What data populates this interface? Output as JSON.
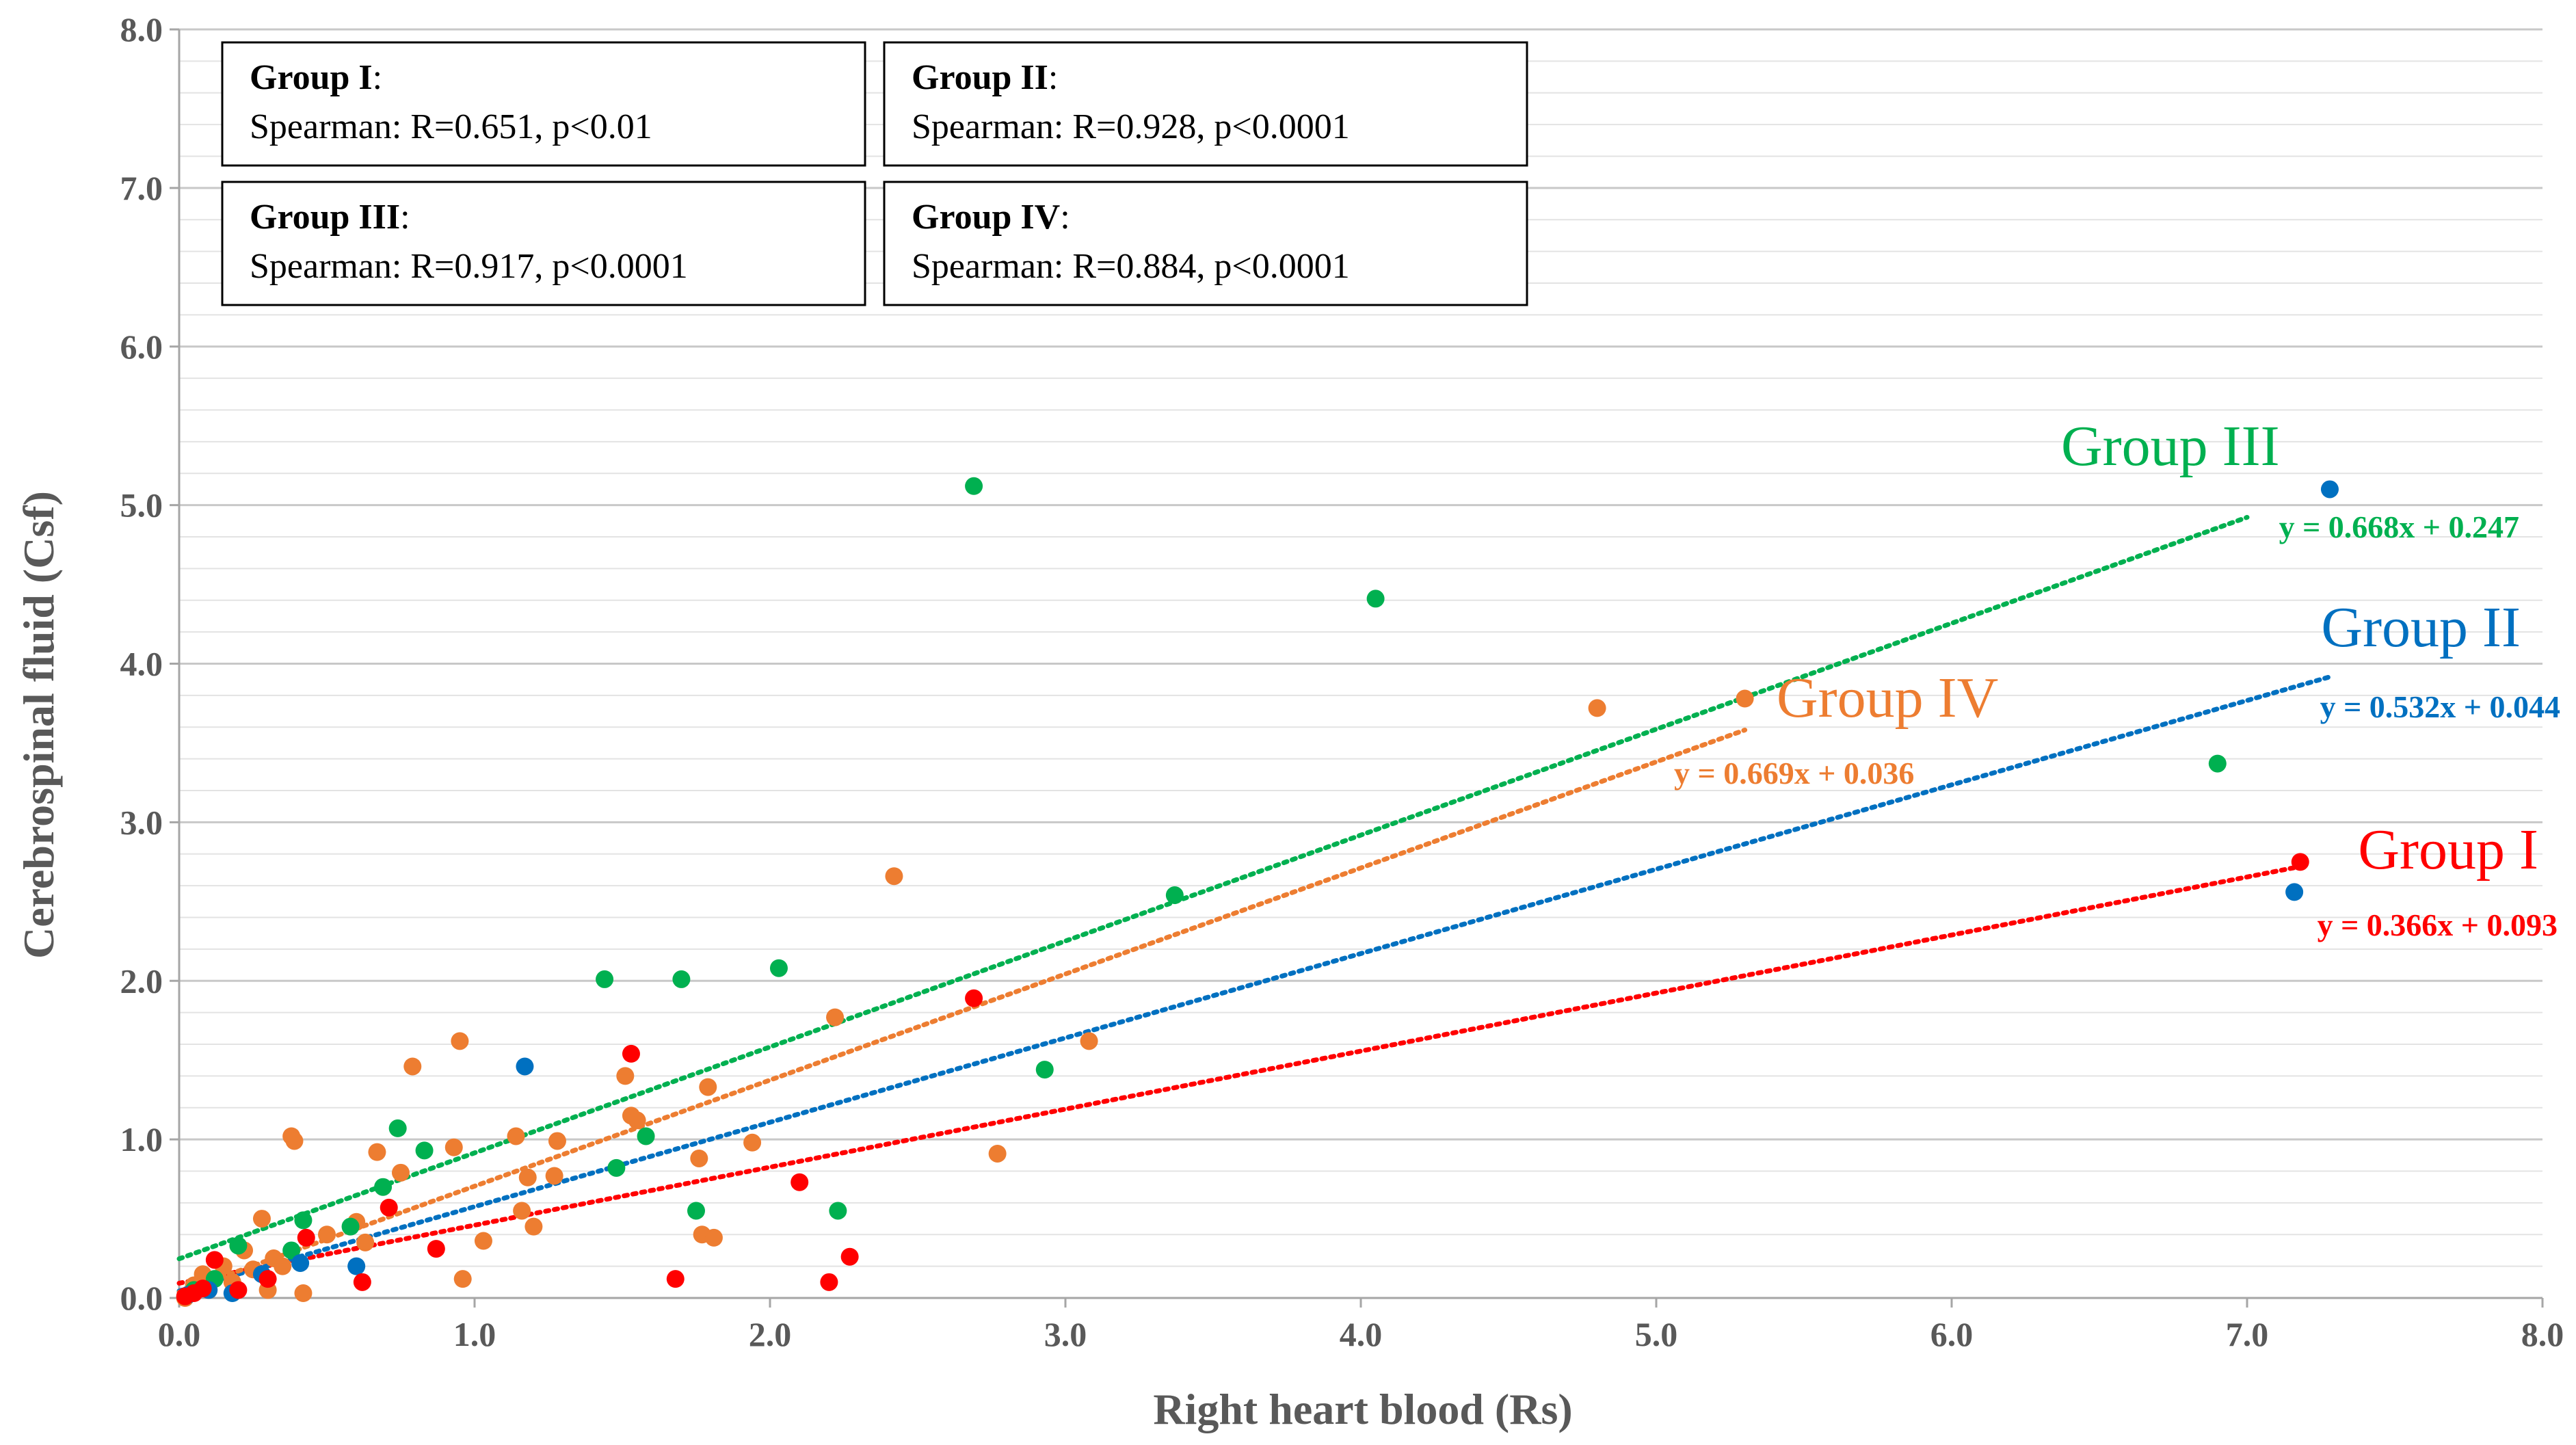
{
  "chart_data": {
    "type": "scatter",
    "xlabel": "Right heart blood (Rs)",
    "ylabel": "Cerebrospinal fluid (Csf)",
    "xlim": [
      0,
      8
    ],
    "ylim": [
      0,
      8
    ],
    "x_ticks": [
      "0.0",
      "1.0",
      "2.0",
      "3.0",
      "4.0",
      "5.0",
      "6.0",
      "7.0",
      "8.0"
    ],
    "y_ticks": [
      "0.0",
      "1.0",
      "2.0",
      "3.0",
      "4.0",
      "5.0",
      "6.0",
      "7.0",
      "8.0"
    ],
    "grid": "horizontal minor gridlines",
    "stats_boxes": [
      {
        "group": "Group I",
        "colon": ":",
        "stat": "Spearman: R=0.651,  p<0.01"
      },
      {
        "group": "Group II",
        "colon": ":",
        "stat": "Spearman: R=0.928,  p<0.0001"
      },
      {
        "group": "Group III",
        "colon": ":",
        "stat": "Spearman: R=0.917,  p<0.0001"
      },
      {
        "group": "Group IV",
        "colon": ":",
        "stat": "Spearman: R=0.884,  p<0.0001"
      }
    ],
    "series": [
      {
        "name": "Group I",
        "color": "#ff0000",
        "equation": "y = 0.366x + 0.093",
        "slope": 0.366,
        "intercept": 0.093,
        "trend_x": [
          0,
          7.18
        ],
        "points": [
          [
            0.02,
            0.01
          ],
          [
            0.05,
            0.03
          ],
          [
            0.08,
            0.06
          ],
          [
            0.12,
            0.24
          ],
          [
            0.2,
            0.05
          ],
          [
            0.3,
            0.12
          ],
          [
            0.43,
            0.38
          ],
          [
            0.62,
            0.1
          ],
          [
            0.71,
            0.57
          ],
          [
            0.87,
            0.31
          ],
          [
            1.53,
            1.54
          ],
          [
            1.68,
            0.12
          ],
          [
            2.1,
            0.73
          ],
          [
            2.2,
            0.1
          ],
          [
            2.27,
            0.26
          ],
          [
            2.69,
            1.89
          ],
          [
            7.18,
            2.75
          ]
        ]
      },
      {
        "name": "Group II",
        "color": "#0070c0",
        "equation": "y = 0.532x + 0.044",
        "slope": 0.532,
        "intercept": 0.044,
        "trend_x": [
          0,
          7.28
        ],
        "points": [
          [
            0.03,
            0.02
          ],
          [
            0.1,
            0.05
          ],
          [
            0.18,
            0.03
          ],
          [
            0.28,
            0.15
          ],
          [
            0.41,
            0.22
          ],
          [
            0.6,
            0.2
          ],
          [
            1.17,
            1.46
          ],
          [
            7.16,
            2.56
          ],
          [
            7.28,
            5.1
          ]
        ]
      },
      {
        "name": "Group III",
        "color": "#00b050",
        "equation": "y = 0.668x + 0.247",
        "slope": 0.668,
        "intercept": 0.247,
        "trend_x": [
          0,
          7.0
        ],
        "points": [
          [
            0.05,
            0.05
          ],
          [
            0.12,
            0.12
          ],
          [
            0.2,
            0.33
          ],
          [
            0.38,
            0.3
          ],
          [
            0.42,
            0.49
          ],
          [
            0.58,
            0.45
          ],
          [
            0.69,
            0.7
          ],
          [
            0.74,
            1.07
          ],
          [
            0.83,
            0.93
          ],
          [
            1.44,
            2.01
          ],
          [
            1.48,
            0.82
          ],
          [
            1.58,
            1.02
          ],
          [
            1.7,
            2.01
          ],
          [
            1.75,
            0.55
          ],
          [
            2.03,
            2.08
          ],
          [
            2.23,
            0.55
          ],
          [
            2.69,
            5.12
          ],
          [
            2.93,
            1.44
          ],
          [
            3.37,
            2.54
          ],
          [
            4.05,
            4.41
          ],
          [
            6.9,
            3.37
          ]
        ]
      },
      {
        "name": "Group IV",
        "color": "#ed7d31",
        "equation": "y = 0.669x + 0.036",
        "slope": 0.669,
        "intercept": 0.036,
        "trend_x": [
          0,
          5.3
        ],
        "points": [
          [
            0.02,
            0.0
          ],
          [
            0.05,
            0.08
          ],
          [
            0.08,
            0.15
          ],
          [
            0.1,
            0.05
          ],
          [
            0.15,
            0.2
          ],
          [
            0.18,
            0.1
          ],
          [
            0.22,
            0.3
          ],
          [
            0.25,
            0.18
          ],
          [
            0.28,
            0.5
          ],
          [
            0.3,
            0.05
          ],
          [
            0.32,
            0.25
          ],
          [
            0.35,
            0.2
          ],
          [
            0.38,
            1.02
          ],
          [
            0.39,
            0.99
          ],
          [
            0.42,
            0.03
          ],
          [
            0.5,
            0.4
          ],
          [
            0.6,
            0.48
          ],
          [
            0.63,
            0.35
          ],
          [
            0.67,
            0.92
          ],
          [
            0.75,
            0.79
          ],
          [
            0.79,
            1.46
          ],
          [
            0.93,
            0.95
          ],
          [
            0.95,
            1.62
          ],
          [
            0.96,
            0.12
          ],
          [
            1.03,
            0.36
          ],
          [
            1.14,
            1.02
          ],
          [
            1.16,
            0.55
          ],
          [
            1.18,
            0.76
          ],
          [
            1.2,
            0.45
          ],
          [
            1.27,
            0.77
          ],
          [
            1.28,
            0.99
          ],
          [
            1.51,
            1.4
          ],
          [
            1.53,
            1.15
          ],
          [
            1.55,
            1.12
          ],
          [
            1.76,
            0.88
          ],
          [
            1.77,
            0.4
          ],
          [
            1.79,
            1.33
          ],
          [
            1.81,
            0.38
          ],
          [
            1.94,
            0.98
          ],
          [
            2.22,
            1.77
          ],
          [
            2.42,
            2.66
          ],
          [
            2.77,
            0.91
          ],
          [
            3.08,
            1.62
          ],
          [
            4.8,
            3.72
          ],
          [
            5.3,
            3.78
          ]
        ]
      }
    ]
  }
}
